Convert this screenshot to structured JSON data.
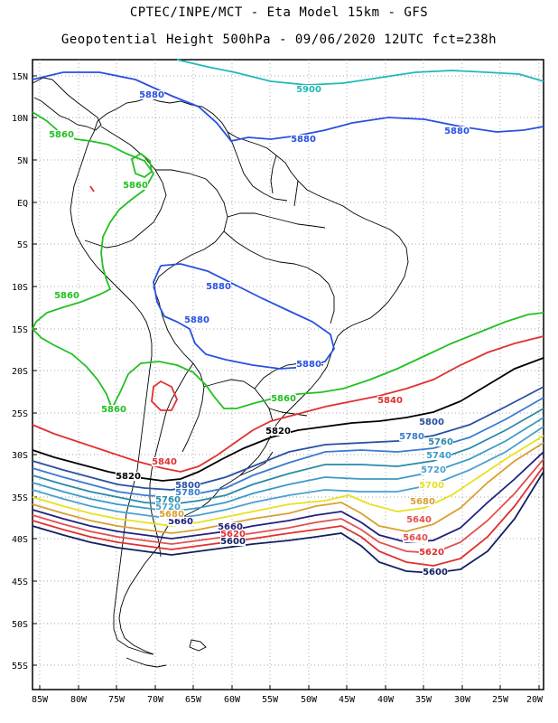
{
  "title_line1": "CPTEC/INPE/MCT -  Eta Model 15km - GFS",
  "title_line2": "Geopotential Height 500hPa - 09/06/2020 12UTC fct=238h",
  "lat_labels": [
    "15N",
    "10N",
    "5N",
    "EQ",
    "5S",
    "10S",
    "15S",
    "20S",
    "25S",
    "30S",
    "35S",
    "40S",
    "45S",
    "50S",
    "55S"
  ],
  "lon_labels": [
    "85W",
    "80W",
    "75W",
    "70W",
    "65W",
    "60W",
    "55W",
    "50W",
    "45W",
    "40W",
    "35W",
    "30W",
    "25W",
    "20W"
  ],
  "colors": {
    "c5900": "#20b8b8",
    "c5880": "#2850e0",
    "c5860": "#22c022",
    "c5840": "#e03030",
    "c5820": "#000000",
    "c5800": "#2850a0",
    "c5780": "#3a7ad0",
    "c5760": "#2a8aa8",
    "c5740": "#3a9ac8",
    "c5720": "#4aa0d0",
    "c5700": "#e8e020",
    "c5680": "#d8a030",
    "c5660": "#202080",
    "c5640": "#e05050",
    "c5620": "#e03030",
    "c5600": "#102060",
    "land": "#ffffff",
    "border": "#000000",
    "grid": "#888888"
  },
  "contour_labels": [
    {
      "text": "5900",
      "color": "c5900"
    },
    {
      "text": "5880",
      "color": "c5880"
    },
    {
      "text": "5880",
      "color": "c5880"
    },
    {
      "text": "5880",
      "color": "c5880"
    },
    {
      "text": "5880",
      "color": "c5880"
    },
    {
      "text": "5880",
      "color": "c5880"
    },
    {
      "text": "5880",
      "color": "c5880"
    },
    {
      "text": "5860",
      "color": "c5860"
    },
    {
      "text": "5860",
      "color": "c5860"
    },
    {
      "text": "5860",
      "color": "c5860"
    },
    {
      "text": "5860",
      "color": "c5860"
    },
    {
      "text": "5860",
      "color": "c5860"
    },
    {
      "text": "5840",
      "color": "c5840"
    },
    {
      "text": "5840",
      "color": "c5840"
    },
    {
      "text": "5820",
      "color": "c5820"
    },
    {
      "text": "5820",
      "color": "c5820"
    },
    {
      "text": "5800",
      "color": "c5800"
    },
    {
      "text": "5800",
      "color": "c5800"
    },
    {
      "text": "5780",
      "color": "c5780"
    },
    {
      "text": "5780",
      "color": "c5780"
    },
    {
      "text": "5760",
      "color": "c5760"
    },
    {
      "text": "5740",
      "color": "c5740"
    },
    {
      "text": "5720",
      "color": "c5720"
    },
    {
      "text": "5700",
      "color": "c5700"
    },
    {
      "text": "5680",
      "color": "c5680"
    },
    {
      "text": "5660",
      "color": "c5660"
    },
    {
      "text": "5660",
      "color": "c5660"
    },
    {
      "text": "5640",
      "color": "c5640"
    },
    {
      "text": "5640",
      "color": "c5640"
    },
    {
      "text": "5620",
      "color": "c5620"
    },
    {
      "text": "5620",
      "color": "c5620"
    },
    {
      "text": "5600",
      "color": "c5600"
    },
    {
      "text": "5600",
      "color": "c5600"
    },
    {
      "text": "5760",
      "color": "c5760"
    },
    {
      "text": "5720",
      "color": "c5720"
    },
    {
      "text": "5680",
      "color": "c5680"
    }
  ]
}
